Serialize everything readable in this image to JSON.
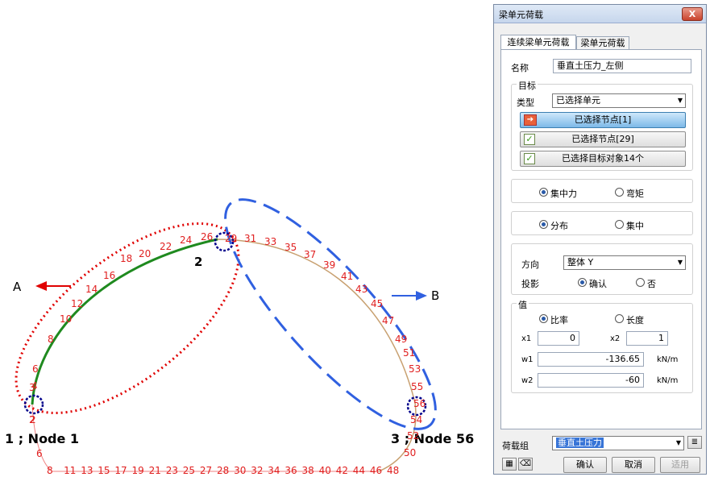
{
  "drawing": {
    "label_a": "A",
    "label_b": "B",
    "node_top": "2",
    "node_left": "1 ; Node 1",
    "node_right": "3 ; Node 56",
    "left_arc_labels": [
      "2",
      "4",
      "6",
      "8",
      "10",
      "12",
      "14",
      "16",
      "18",
      "20",
      "22",
      "24",
      "26"
    ],
    "right_arc_labels": [
      "29",
      "31",
      "33",
      "35",
      "37",
      "39",
      "41",
      "43",
      "45",
      "47",
      "49",
      "51",
      "53",
      "55",
      "56",
      "54",
      "52",
      "50"
    ],
    "bottom_labels": [
      "8",
      "11",
      "13",
      "15",
      "17",
      "19",
      "21",
      "23",
      "25",
      "27",
      "28",
      "30",
      "32",
      "34",
      "36",
      "38",
      "40",
      "42",
      "44",
      "46",
      "48"
    ],
    "extra_left_labels": [
      "3",
      "2",
      "6"
    ],
    "colors": {
      "label_red": "#e02020",
      "green_member": "#1f8a1f",
      "red_dotted": "#e00000",
      "blue_dashed": "#3060e0",
      "node_circle": "#00008b",
      "arc_tan": "#c8a070"
    }
  },
  "dialog": {
    "title": "梁单元荷载",
    "close_label": "X",
    "tabs": [
      {
        "label": "连续梁单元荷载"
      },
      {
        "label": "梁单元荷载"
      }
    ],
    "name_label": "名称",
    "name_value": "垂直土压力_左侧",
    "target_group": "目标",
    "type_label": "类型",
    "type_value": "已选择单元",
    "btn_sel_node1": "已选择节点[1]",
    "btn_sel_node29": "已选择节点[29]",
    "btn_sel_targets": "已选择目标对象14个",
    "radio_concentrated": "集中力",
    "radio_moment": "弯矩",
    "radio_distributed": "分布",
    "radio_concentrated2": "集中",
    "direction_label": "方向",
    "direction_value": "整体 Y",
    "projection_label": "投影",
    "radio_confirm": "确认",
    "radio_no": "否",
    "value_group": "值",
    "radio_ratio": "比率",
    "radio_length": "长度",
    "x1_label": "x1",
    "x1_value": "0",
    "x2_label": "x2",
    "x2_value": "1",
    "w1_label": "w1",
    "w1_value": "-136.65",
    "w1_unit": "kN/m",
    "w2_label": "w2",
    "w2_value": "-60",
    "w2_unit": "kN/m",
    "load_group_label": "荷载组",
    "load_group_value": "垂直土压力",
    "ok": "确认",
    "cancel": "取消",
    "apply": "适用"
  }
}
